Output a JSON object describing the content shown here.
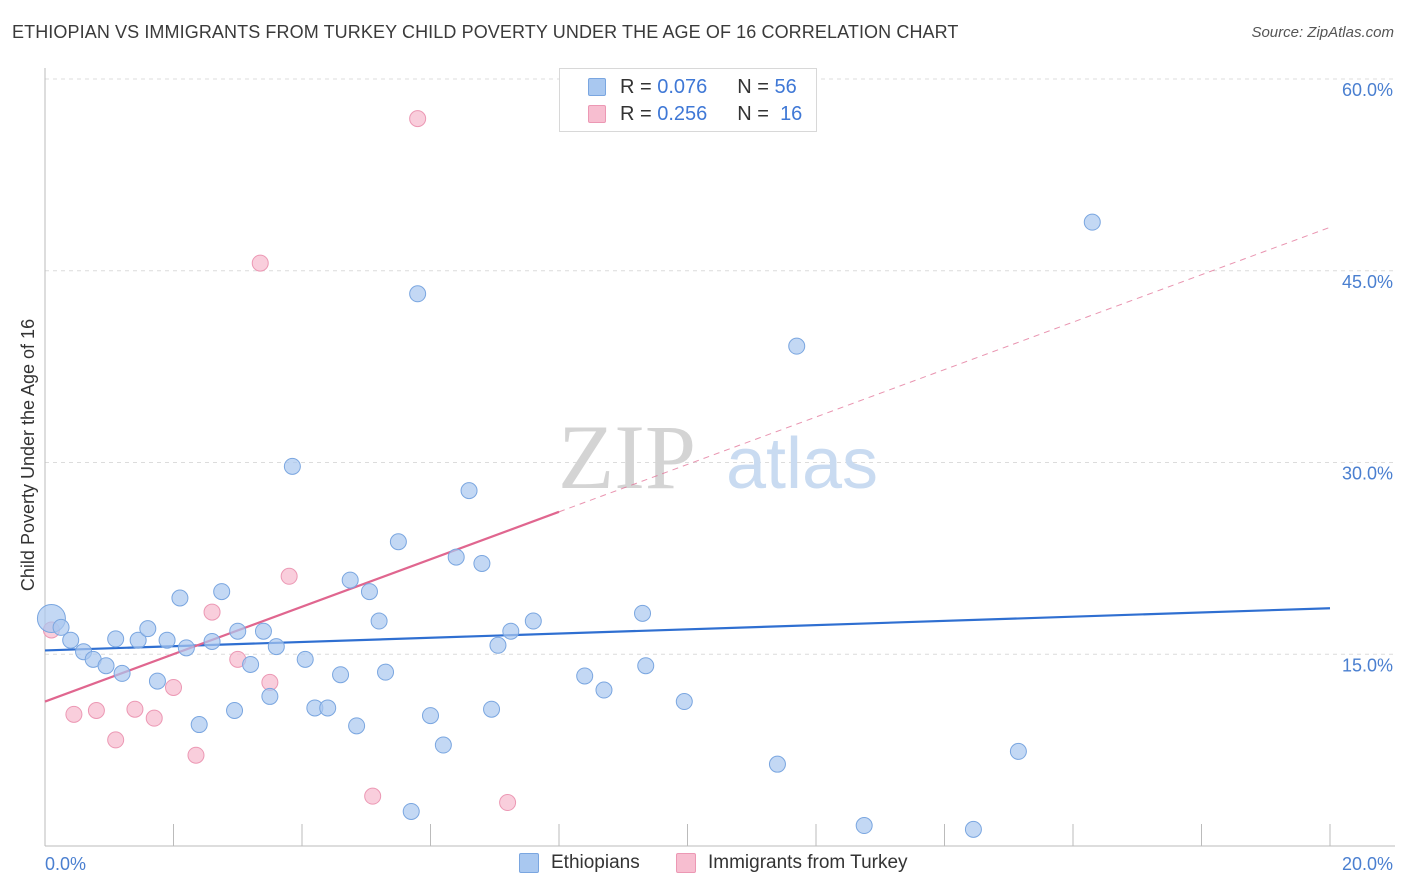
{
  "header": {
    "title": "ETHIOPIAN VS IMMIGRANTS FROM TURKEY CHILD POVERTY UNDER THE AGE OF 16 CORRELATION CHART",
    "source": "Source: ZipAtlas.com"
  },
  "legend_top": {
    "rows": [
      {
        "r_label": "R =",
        "r_value": "0.076",
        "n_label": "N =",
        "n_value": "56"
      },
      {
        "r_label": "R =",
        "r_value": "0.256",
        "n_label": "N =",
        "n_value": "16"
      }
    ]
  },
  "legend_bottom": {
    "items": [
      "Ethiopians",
      "Immigrants from Turkey"
    ]
  },
  "watermark": {
    "zip": "ZIP",
    "atlas": "atlas"
  },
  "colors": {
    "blue_fill": "#a9c8f0",
    "blue_stroke": "#7aa6e0",
    "blue_line": "#2f6fd1",
    "pink_fill": "#f7bed0",
    "pink_stroke": "#ec98b4",
    "pink_line": "#e0668f",
    "tick_text": "#4a7fd0",
    "grid": "#dcdcdc"
  },
  "chart_data": {
    "type": "scatter",
    "title": "ETHIOPIAN VS IMMIGRANTS FROM TURKEY CHILD POVERTY UNDER THE AGE OF 16 CORRELATION CHART",
    "xlabel": "",
    "ylabel": "Child Poverty Under the Age of 16",
    "xlim": [
      0,
      20
    ],
    "ylim": [
      0,
      60
    ],
    "x_tick_labels": [
      "0.0%",
      "20.0%"
    ],
    "y_ticks": [
      15,
      30,
      45,
      60
    ],
    "y_tick_labels": [
      "15.0%",
      "30.0%",
      "45.0%",
      "60.0%"
    ],
    "x_minor_ticks": [
      0,
      2,
      4,
      6,
      8,
      10,
      12,
      14,
      16,
      18,
      20
    ],
    "series": [
      {
        "name": "Ethiopians",
        "color": "blue",
        "r": 0.076,
        "n": 56,
        "trend": {
          "x0": 0,
          "y0": 15.3,
          "x1": 20,
          "y1": 18.6
        },
        "points": [
          [
            0.1,
            17.8
          ],
          [
            0.25,
            17.1
          ],
          [
            0.4,
            16.1
          ],
          [
            0.6,
            15.2
          ],
          [
            0.75,
            14.6
          ],
          [
            0.95,
            14.1
          ],
          [
            1.1,
            16.2
          ],
          [
            1.2,
            13.5
          ],
          [
            1.45,
            16.1
          ],
          [
            1.6,
            17.0
          ],
          [
            1.75,
            12.9
          ],
          [
            1.9,
            16.1
          ],
          [
            2.1,
            19.4
          ],
          [
            2.2,
            15.5
          ],
          [
            2.4,
            9.5
          ],
          [
            2.6,
            16.0
          ],
          [
            2.75,
            19.9
          ],
          [
            2.95,
            10.6
          ],
          [
            3.0,
            16.8
          ],
          [
            3.2,
            14.2
          ],
          [
            3.4,
            16.8
          ],
          [
            3.5,
            11.7
          ],
          [
            3.6,
            15.6
          ],
          [
            3.85,
            29.7
          ],
          [
            4.05,
            14.6
          ],
          [
            4.2,
            10.8
          ],
          [
            4.4,
            10.8
          ],
          [
            4.6,
            13.4
          ],
          [
            4.75,
            20.8
          ],
          [
            4.85,
            9.4
          ],
          [
            5.05,
            19.9
          ],
          [
            5.2,
            17.6
          ],
          [
            5.3,
            13.6
          ],
          [
            5.5,
            23.8
          ],
          [
            5.7,
            2.7
          ],
          [
            5.8,
            43.2
          ],
          [
            6.0,
            10.2
          ],
          [
            6.2,
            7.9
          ],
          [
            6.4,
            22.6
          ],
          [
            6.6,
            27.8
          ],
          [
            6.8,
            22.1
          ],
          [
            6.95,
            10.7
          ],
          [
            7.05,
            15.7
          ],
          [
            7.25,
            16.8
          ],
          [
            7.6,
            17.6
          ],
          [
            8.4,
            13.3
          ],
          [
            8.7,
            12.2
          ],
          [
            9.3,
            18.2
          ],
          [
            9.35,
            14.1
          ],
          [
            9.95,
            11.3
          ],
          [
            11.4,
            6.4
          ],
          [
            11.7,
            39.1
          ],
          [
            12.75,
            1.6
          ],
          [
            14.45,
            1.3
          ],
          [
            15.15,
            7.4
          ],
          [
            16.3,
            48.8
          ]
        ]
      },
      {
        "name": "Immigrants from Turkey",
        "color": "pink",
        "r": 0.256,
        "n": 16,
        "trend": {
          "x0": 0,
          "y0": 11.3,
          "x1": 20,
          "y1": 48.4,
          "solid_until_x": 8.0
        },
        "points": [
          [
            0.1,
            16.9
          ],
          [
            0.45,
            10.3
          ],
          [
            0.8,
            10.6
          ],
          [
            1.1,
            8.3
          ],
          [
            1.4,
            10.7
          ],
          [
            1.7,
            10.0
          ],
          [
            2.0,
            12.4
          ],
          [
            2.35,
            7.1
          ],
          [
            2.6,
            18.3
          ],
          [
            3.0,
            14.6
          ],
          [
            3.35,
            45.6
          ],
          [
            3.5,
            12.8
          ],
          [
            3.8,
            21.1
          ],
          [
            5.1,
            3.9
          ],
          [
            5.8,
            56.9
          ],
          [
            7.2,
            3.4
          ]
        ]
      }
    ]
  }
}
